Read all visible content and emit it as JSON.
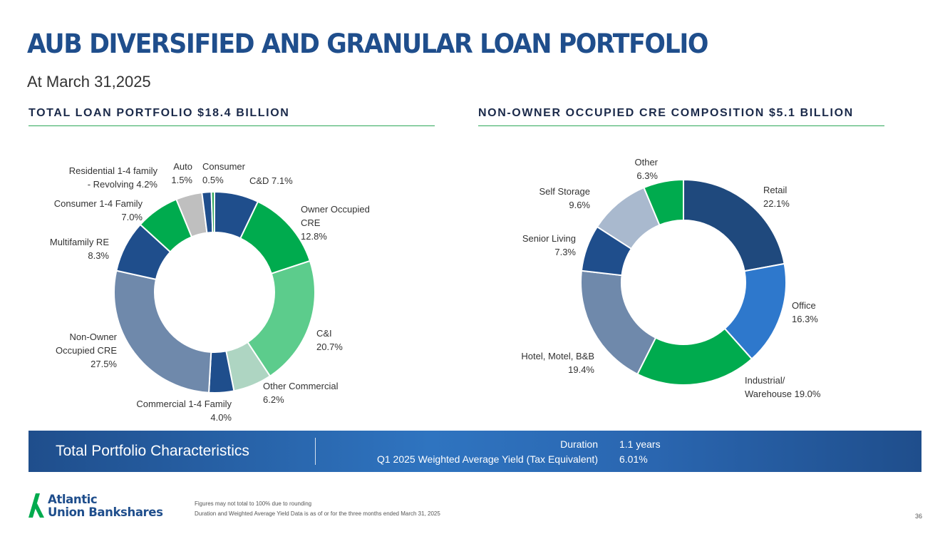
{
  "header": {
    "title": "AUB DIVERSIFIED AND GRANULAR LOAN PORTFOLIO",
    "subtitle": "At March 31,2025"
  },
  "chart_data": [
    {
      "type": "pie",
      "title": "TOTAL LOAN PORTFOLIO $18.4 BILLION",
      "donut": true,
      "slices": [
        {
          "label": [
            "C&D 7.1%"
          ],
          "value": 7.1,
          "color": "#1f4e8c"
        },
        {
          "label": [
            "Owner Occupied",
            "CRE",
            "12.8%"
          ],
          "value": 12.8,
          "color": "#00ab4e"
        },
        {
          "label": [
            "C&I",
            "20.7%"
          ],
          "value": 20.7,
          "color": "#5ccc8c"
        },
        {
          "label": [
            "Other Commercial",
            "6.2%"
          ],
          "value": 6.2,
          "color": "#aed5c2"
        },
        {
          "label": [
            "Commercial 1-4 Family",
            "4.0%"
          ],
          "value": 4.0,
          "color": "#1f4e8c"
        },
        {
          "label": [
            "Non-Owner",
            "Occupied CRE",
            "27.5%"
          ],
          "value": 27.5,
          "color": "#6f89ab"
        },
        {
          "label": [
            "Multifamily RE",
            "8.3%"
          ],
          "value": 8.3,
          "color": "#1f4e8c"
        },
        {
          "label": [
            "Consumer 1-4 Family",
            "7.0%"
          ],
          "value": 7.0,
          "color": "#00ab4e"
        },
        {
          "label": [
            "Residential 1-4 family",
            "- Revolving 4.2%"
          ],
          "value": 4.2,
          "color": "#bfbfbf"
        },
        {
          "label": [
            "Auto",
            "1.5%"
          ],
          "value": 1.5,
          "color": "#1f4e8c"
        },
        {
          "label": [
            "Consumer",
            "0.5%"
          ],
          "value": 0.5,
          "color": "#2ea85a"
        }
      ]
    },
    {
      "type": "pie",
      "title": "NON-OWNER OCCUPIED CRE COMPOSITION $5.1 BILLION",
      "donut": true,
      "slices": [
        {
          "label": [
            "Retail",
            "22.1%"
          ],
          "value": 22.1,
          "color": "#1f497d"
        },
        {
          "label": [
            "Office",
            "16.3%"
          ],
          "value": 16.3,
          "color": "#2e78cc"
        },
        {
          "label": [
            "Industrial/",
            "Warehouse 19.0%"
          ],
          "value": 19.0,
          "color": "#00ab4e"
        },
        {
          "label": [
            "Hotel, Motel, B&B",
            "19.4%"
          ],
          "value": 19.4,
          "color": "#6f89ab"
        },
        {
          "label": [
            "Senior Living",
            "7.3%"
          ],
          "value": 7.3,
          "color": "#1f4e8c"
        },
        {
          "label": [
            "Self Storage",
            "9.6%"
          ],
          "value": 9.6,
          "color": "#a9b9ce"
        },
        {
          "label": [
            "Other",
            "6.3%"
          ],
          "value": 6.3,
          "color": "#00ab4e"
        }
      ]
    }
  ],
  "characteristics": {
    "title": "Total Portfolio Characteristics",
    "rows": [
      {
        "label": "Duration",
        "value": "1.1 years"
      },
      {
        "label": "Q1 2025 Weighted Average Yield (Tax Equivalent)",
        "value": "6.01%"
      }
    ]
  },
  "logo": {
    "line1": "Atlantic",
    "line2": "Union Bankshares"
  },
  "footnotes": [
    "Figures may not total to 100% due to rounding",
    "Duration and Weighted Average Yield Data is as of or for the three months ended March 31, 2025"
  ],
  "page_number": "36",
  "colors": {
    "brand_blue": "#1f4e8c",
    "brand_green": "#00ab4e"
  }
}
